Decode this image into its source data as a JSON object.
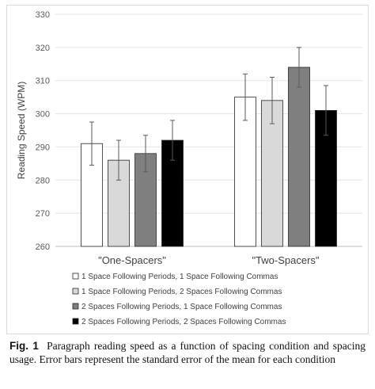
{
  "chart_data": {
    "type": "bar",
    "categories": [
      "\"One-Spacers\"",
      "\"Two-Spacers\""
    ],
    "ylabel": "Reading Speed (WPM)",
    "xlabel": "",
    "ylim": [
      260,
      330
    ],
    "yticks": [
      260,
      270,
      280,
      290,
      300,
      310,
      320,
      330
    ],
    "grid": true,
    "legend_position": "bottom",
    "series": [
      {
        "name": "1 Space Following Periods, 1 Space Following Commas",
        "color": "#ffffff",
        "values": [
          291,
          305
        ],
        "errors": [
          6.5,
          7
        ]
      },
      {
        "name": "1 Space Following Periods, 2 Spaces Following Commas",
        "color": "#d9d9d9",
        "values": [
          286,
          304
        ],
        "errors": [
          6,
          7
        ]
      },
      {
        "name": "2 Spaces Following Periods, 1 Space Following Commas",
        "color": "#7f7f7f",
        "values": [
          288,
          314
        ],
        "errors": [
          5.5,
          6
        ]
      },
      {
        "name": "2 Spaces Following Periods, 2 Spaces Following Commas",
        "color": "#000000",
        "values": [
          292,
          301
        ],
        "errors": [
          6,
          7.5
        ]
      }
    ]
  },
  "caption": {
    "label": "Fig. 1",
    "text": "Paragraph reading speed as a function of spacing condition and spacing usage. Error bars represent the standard error of the mean for each condition"
  }
}
